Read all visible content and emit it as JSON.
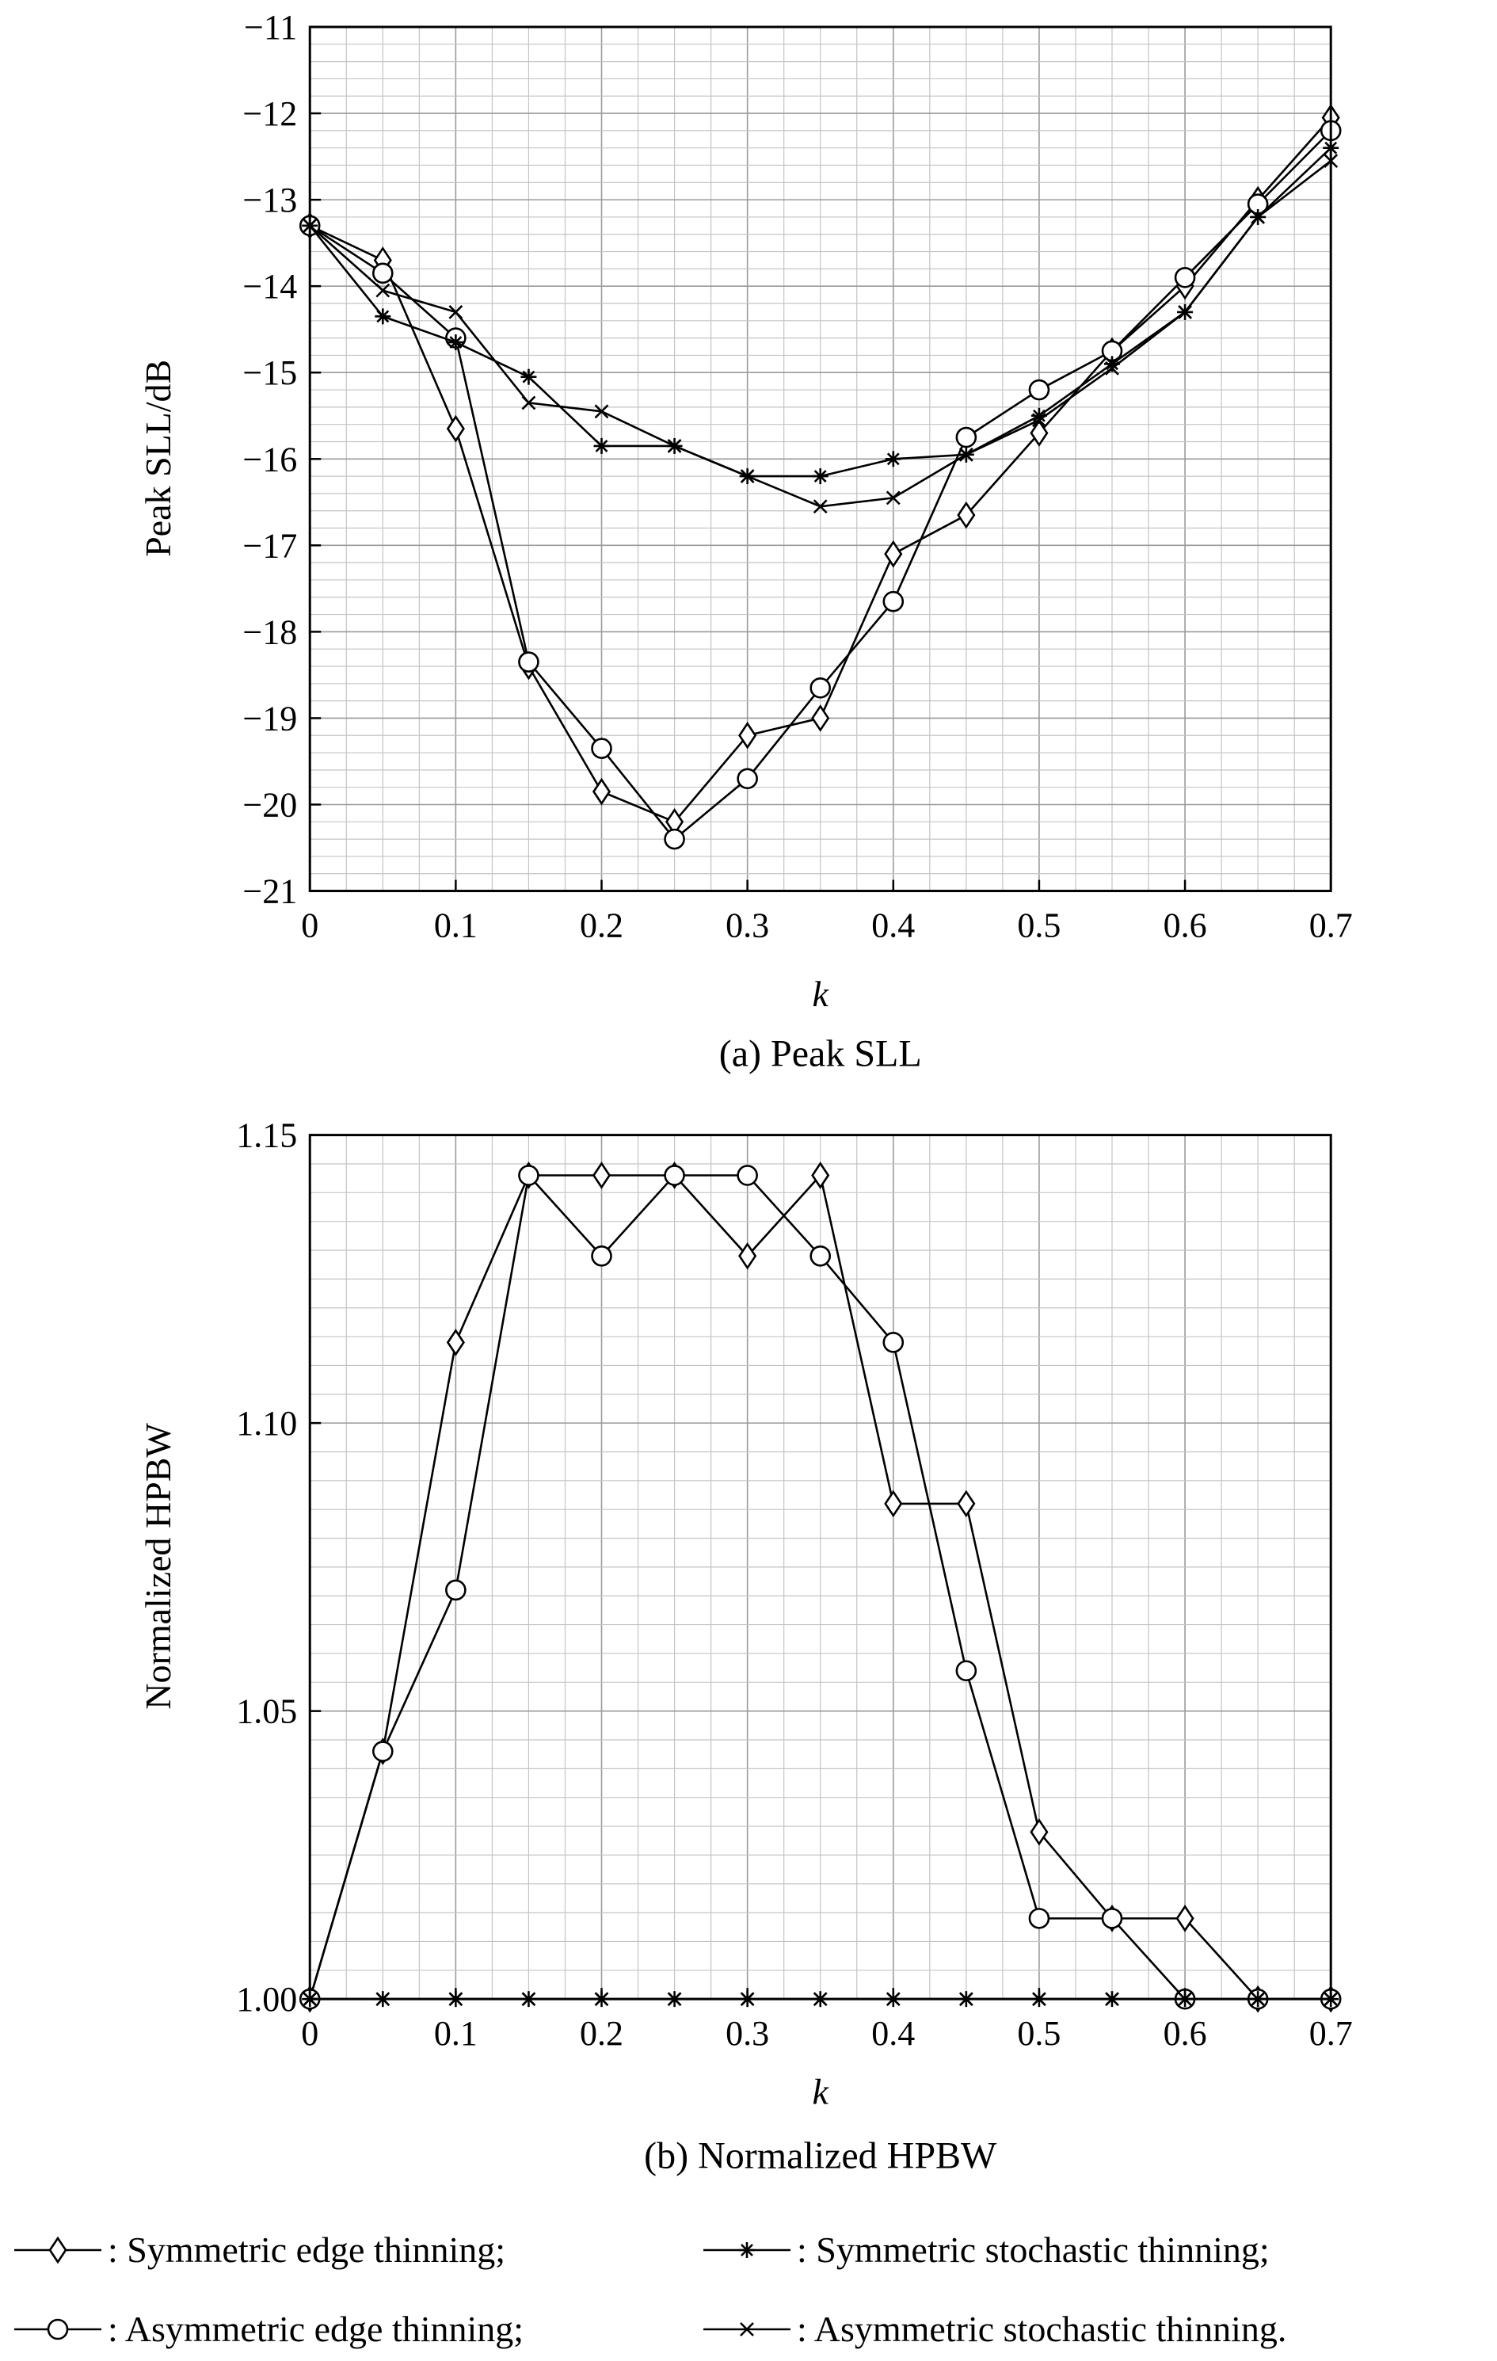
{
  "chart_data": [
    {
      "id": "a",
      "type": "line",
      "caption": "(a) Peak SLL",
      "xlabel": "k",
      "ylabel": "Peak SLL/dB",
      "xlim": [
        0,
        0.7
      ],
      "ylim": [
        -21,
        -11
      ],
      "xticks": [
        0,
        0.1,
        0.2,
        0.3,
        0.4,
        0.5,
        0.6,
        0.7
      ],
      "xtick_labels": [
        "0",
        "0.1",
        "0.2",
        "0.3",
        "0.4",
        "0.5",
        "0.6",
        "0.7"
      ],
      "yticks": [
        -21,
        -20,
        -19,
        -18,
        -17,
        -16,
        -15,
        -14,
        -13,
        -12,
        -11
      ],
      "ytick_labels": [
        "−21",
        "−20",
        "−19",
        "−18",
        "−17",
        "−16",
        "−15",
        "−14",
        "−13",
        "−12",
        "−11"
      ],
      "grid": true,
      "x": [
        0,
        0.05,
        0.1,
        0.15,
        0.2,
        0.25,
        0.3,
        0.35,
        0.4,
        0.45,
        0.5,
        0.55,
        0.6,
        0.65,
        0.7
      ],
      "series": [
        {
          "name": "Symmetric edge thinning",
          "marker": "diamond",
          "values": [
            -13.3,
            -13.7,
            -15.65,
            -18.4,
            -19.85,
            -20.2,
            -19.2,
            -19.0,
            -17.1,
            -16.65,
            -15.7,
            -14.75,
            -14.0,
            -13.0,
            -12.05
          ]
        },
        {
          "name": "Asymmetric edge thinning",
          "marker": "circle",
          "values": [
            -13.3,
            -13.85,
            -14.6,
            -18.35,
            -19.35,
            -20.4,
            -19.7,
            -18.65,
            -17.65,
            -15.75,
            -15.2,
            -14.75,
            -13.9,
            -13.05,
            -12.2
          ]
        },
        {
          "name": "Symmetric stochastic thinning",
          "marker": "asterisk",
          "values": [
            -13.3,
            -14.35,
            -14.65,
            -15.05,
            -15.85,
            -15.85,
            -16.2,
            -16.2,
            -16.0,
            -15.95,
            -15.5,
            -14.9,
            -14.3,
            -13.2,
            -12.4
          ]
        },
        {
          "name": "Asymmetric stochastic thinning",
          "marker": "cross",
          "values": [
            -13.3,
            -14.05,
            -14.3,
            -15.35,
            -15.45,
            -15.85,
            -16.2,
            -16.55,
            -16.45,
            -15.95,
            -15.55,
            -14.95,
            -14.3,
            -13.2,
            -12.55
          ]
        }
      ]
    },
    {
      "id": "b",
      "type": "line",
      "caption": "(b) Normalized HPBW",
      "xlabel": "k",
      "ylabel": "Normalized HPBW",
      "xlim": [
        0,
        0.7
      ],
      "ylim": [
        1.0,
        1.15
      ],
      "xticks": [
        0,
        0.1,
        0.2,
        0.3,
        0.4,
        0.5,
        0.6,
        0.7
      ],
      "xtick_labels": [
        "0",
        "0.1",
        "0.2",
        "0.3",
        "0.4",
        "0.5",
        "0.6",
        "0.7"
      ],
      "yticks": [
        1.0,
        1.05,
        1.1,
        1.15
      ],
      "ytick_labels": [
        "1.00",
        "1.05",
        "1.10",
        "1.15"
      ],
      "grid": true,
      "x": [
        0,
        0.05,
        0.1,
        0.15,
        0.2,
        0.25,
        0.3,
        0.35,
        0.4,
        0.45,
        0.5,
        0.55,
        0.6,
        0.65,
        0.7
      ],
      "series": [
        {
          "name": "Symmetric edge thinning",
          "marker": "diamond",
          "values": [
            1.0,
            1.043,
            1.114,
            1.143,
            1.143,
            1.143,
            1.129,
            1.143,
            1.086,
            1.086,
            1.029,
            1.014,
            1.014,
            1.0,
            1.0
          ]
        },
        {
          "name": "Asymmetric edge thinning",
          "marker": "circle",
          "values": [
            1.0,
            1.043,
            1.071,
            1.143,
            1.129,
            1.143,
            1.143,
            1.129,
            1.114,
            1.057,
            1.014,
            1.014,
            1.0,
            1.0,
            1.0
          ]
        },
        {
          "name": "Symmetric stochastic thinning",
          "marker": "asterisk",
          "values": [
            1.0,
            1.0,
            1.0,
            1.0,
            1.0,
            1.0,
            1.0,
            1.0,
            1.0,
            1.0,
            1.0,
            1.0,
            1.0,
            1.0,
            1.0
          ]
        },
        {
          "name": "Asymmetric stochastic thinning",
          "marker": "cross",
          "values": [
            1.0,
            1.0,
            1.0,
            1.0,
            1.0,
            1.0,
            1.0,
            1.0,
            1.0,
            1.0,
            1.0,
            1.0,
            1.0,
            1.0,
            1.0
          ]
        }
      ]
    }
  ],
  "legend": {
    "items": [
      {
        "marker": "diamond",
        "text": ": Symmetric edge thinning;"
      },
      {
        "marker": "asterisk",
        "text": ": Symmetric stochastic thinning;"
      },
      {
        "marker": "circle",
        "text": ": Asymmetric edge thinning;"
      },
      {
        "marker": "cross",
        "text": ": Asymmetric stochastic thinning."
      }
    ]
  }
}
